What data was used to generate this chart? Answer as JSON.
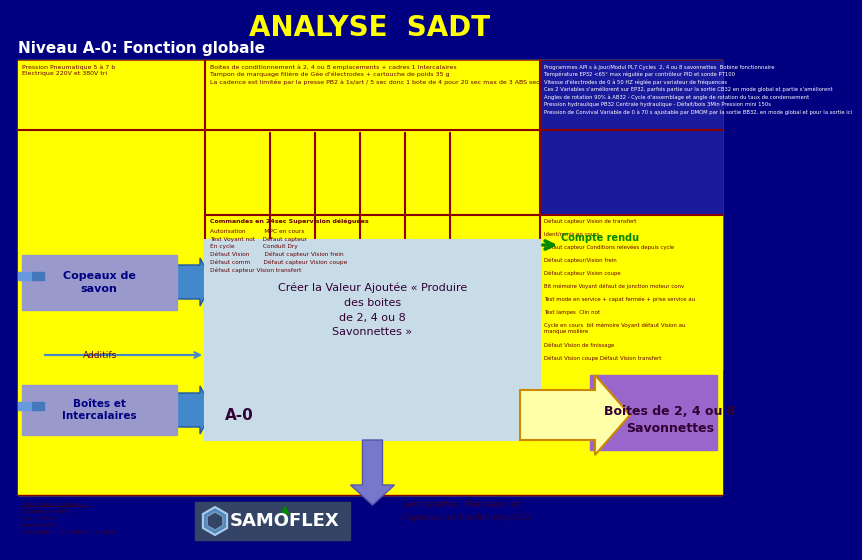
{
  "title": "ANALYSE  SADT",
  "subtitle": "Niveau A-0: Fonction globale",
  "bg_color": "#000080",
  "title_color": "#FFFF00",
  "subtitle_color": "#FFFFFF",
  "main_bg": "#FFFF00",
  "header_text_left": "Pression Pneumatique 5 à 7 b\nElectrique 220V et 380V tri",
  "header_text_center": "Boites de conditionnement à 2, 4 ou 8 emplacements + cadres 1 Intercalaires\nTampon de marquage filière de Gée d'électrodes + cartouche de poids 35 g\nLa cadence est limitée par la presse PB2 à 1s/art / 5 sec donc 1 bote de 4 pour 20 sec max de 3 ABS sec",
  "controls_text": "Programmes API s à jour/Modul PL7 Cycles  2, 4 ou 8 savonnettes  Bobine fonctionnaire\nTempérature EP32 <65° max régulée par contrôleur PID et sonde PT100\nVitesse d'électrodes de 0 à 50 HZ réglée par variateur de fréquences\nCes 2 Variables s'améliorent sur EP32, parfois partie sur la sortie CB32 en mode global et partie s'améliorent\nAngles de rotation 90% à AB32 - Cycle d'assemblage et angle de rotation du taux de condensement\nPression hydraulique PB32 Centrale hydraulique - Défait/bois 3Min Pression mini 150s\nPression de Convival Variable de 0 à 70 s ajustable par DMOM par la sortie BB32, en mode global et pour la sortie ici",
  "commands_list1": "Commandes en 24sec Supervision déléguées",
  "commands_list2": "Autorisation          MPC en cours\nTest Voyant not    Défaut capteur\nEn cycle               Conduit Dry\nDéfaut Vision        Défaut capteur Vision frein\nDéfaut comm       Défaut capteur Vision coupe\nDéfaut capteur Vision transfert",
  "controls_right": "Défaut capteur Vision de transfert\n\nIdent/remis en cours\n\nDéfaut capteur Conditions relevées depuis cycle\n\nDéfaut capteur/Vision frein\n\nDéfaut capteur Vision coupe\n\nBit mémoire Voyant défaut de jonction moteur conv\n\nTest mode en service + capat fermée + prise service au\n\nTest lampes  Clin not\n\nCycle en cours  bit mémoire Voyant défaut Vision au\nmanque molière\n\nDéfaut Vision de finissage\n\nDéfaut Vision coupe Défaut Vision transfert",
  "copeaux_text": "Copeaux de\nsavon",
  "additifs_text": "Additifs",
  "boites_input_text": "Boîtes et\nIntercalaires",
  "center_box_text": "Créer la Valeur Ajoutée « Produire\ndes boites\nde 2, 4 ou 8\nSavonnettes »",
  "center_box_label": "A-0",
  "output_text": "Boites de 2, 4 ou 8\nSavonnettes",
  "waste_text": "Savonnettes, Morceaux et\nCopeaux de bordon recyclés",
  "compte_rendu": "Compte rendu",
  "bottom_left_text": "3 Modules cycliques\nExtrudeuse EP32\nCycle BB32\nPresse EP32\nAssembleur Conditionné à AB32",
  "samoflex_text": "SAMOFLEX"
}
